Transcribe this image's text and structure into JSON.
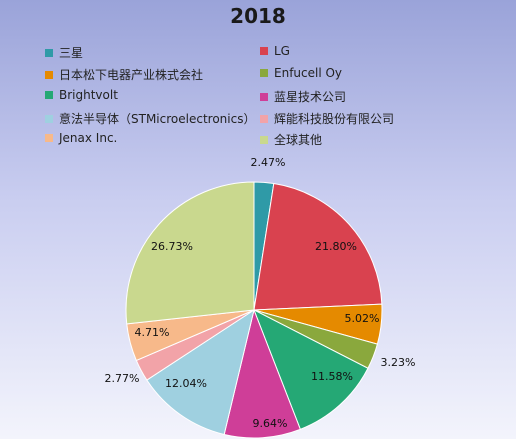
{
  "chart_data": {
    "type": "pie",
    "title": "2018",
    "legend_placement": "top",
    "slices": [
      {
        "name": "三星",
        "value": 2.47,
        "label": "2.47%",
        "color": "#2f9aa7"
      },
      {
        "name": "LG",
        "value": 21.8,
        "label": "21.80%",
        "color": "#d9424f"
      },
      {
        "name": "日本松下电器产业株式会社",
        "value": 5.02,
        "label": "5.02%",
        "color": "#e58a00"
      },
      {
        "name": "Enfucell Oy",
        "value": 3.23,
        "label": "3.23%",
        "color": "#8aa83d"
      },
      {
        "name": "Brightvolt",
        "value": 11.58,
        "label": "11.58%",
        "color": "#25a875"
      },
      {
        "name": "蓝星技术公司",
        "value": 9.64,
        "label": "9.64%",
        "color": "#cf3e98"
      },
      {
        "name": "意法半导体（STMicroelectronics）",
        "value": 12.04,
        "label": "12.04%",
        "color": "#9fd0e0"
      },
      {
        "name": "辉能科技股份有限公司",
        "value": 2.77,
        "label": "2.77%",
        "color": "#f2a3a8"
      },
      {
        "name": "Jenax Inc.",
        "value": 4.71,
        "label": "4.71%",
        "color": "#f7b98a"
      },
      {
        "name": "全球其他",
        "value": 26.73,
        "label": "26.73%",
        "color": "#c9d88e"
      }
    ]
  }
}
